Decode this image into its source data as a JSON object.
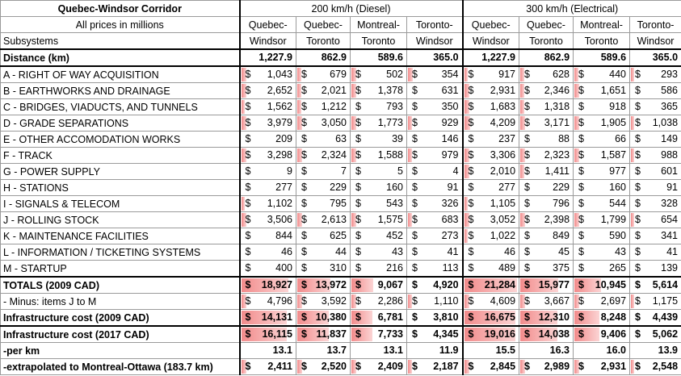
{
  "table": {
    "title": "Quebec-Windsor Corridor",
    "subtitle": "All prices in millions",
    "subsystems_label": "Subsystems",
    "group_diesel": "200 km/h (Diesel)",
    "group_electric": "300 km/h (Electrical)",
    "col_headers_top": [
      "Quebec-",
      "Quebec-",
      "Montreal-",
      "Toronto-",
      "Quebec-",
      "Quebec-",
      "Montreal-",
      "Toronto-"
    ],
    "col_headers_bottom": [
      "Windsor",
      "Toronto",
      "Toronto",
      "Windsor",
      "Windsor",
      "Toronto",
      "Toronto",
      "Windsor"
    ],
    "distance": {
      "label": "Distance (km)",
      "values": [
        "1,227.9",
        "862.9",
        "589.6",
        "365.0",
        "1,227.9",
        "862.9",
        "589.6",
        "365.0"
      ]
    },
    "currency_symbol": "$",
    "rows": [
      {
        "label": "A - RIGHT OF WAY ACQUISITION",
        "values": [
          "1,043",
          "679",
          "502",
          "354",
          "917",
          "628",
          "440",
          "293"
        ],
        "bars": [
          0.12,
          0.11,
          0.12,
          0.12,
          0.1,
          0.1,
          0.1,
          0.1
        ]
      },
      {
        "label": "B - EARTHWORKS AND DRAINAGE",
        "values": [
          "2,652",
          "2,021",
          "1,378",
          "631",
          "2,931",
          "2,346",
          "1,651",
          "586"
        ],
        "bars": [
          0.12,
          0.11,
          0.12,
          0.0,
          0.12,
          0.11,
          0.12,
          0.0
        ]
      },
      {
        "label": "C - BRIDGES, VIADUCTS, AND TUNNELS",
        "values": [
          "1,562",
          "1,212",
          "793",
          "350",
          "1,683",
          "1,318",
          "918",
          "365"
        ],
        "bars": [
          0.1,
          0.1,
          0.0,
          0.0,
          0.12,
          0.11,
          0.0,
          0.0
        ]
      },
      {
        "label": "D - GRADE SEPARATIONS",
        "values": [
          "3,979",
          "3,050",
          "1,773",
          "929",
          "4,209",
          "3,171",
          "1,905",
          "1,038"
        ],
        "bars": [
          0.12,
          0.12,
          0.12,
          0.1,
          0.14,
          0.12,
          0.12,
          0.1
        ]
      },
      {
        "label": "E - OTHER ACCOMODATION WORKS",
        "values": [
          "209",
          "63",
          "39",
          "146",
          "237",
          "88",
          "66",
          "149"
        ],
        "bars": [
          0,
          0,
          0,
          0,
          0,
          0,
          0,
          0
        ]
      },
      {
        "label": "F - TRACK",
        "values": [
          "3,298",
          "2,324",
          "1,588",
          "979",
          "3,306",
          "2,323",
          "1,587",
          "988"
        ],
        "bars": [
          0.12,
          0.12,
          0.12,
          0.1,
          0.12,
          0.12,
          0.12,
          0.1
        ]
      },
      {
        "label": "G - POWER SUPPLY",
        "values": [
          "9",
          "7",
          "5",
          "4",
          "2,010",
          "1,411",
          "977",
          "601"
        ],
        "bars": [
          0,
          0,
          0,
          0,
          0.12,
          0.11,
          0.0,
          0.0
        ]
      },
      {
        "label": "H - STATIONS",
        "values": [
          "277",
          "229",
          "160",
          "91",
          "277",
          "229",
          "160",
          "91"
        ],
        "bars": [
          0,
          0,
          0,
          0,
          0,
          0,
          0,
          0
        ]
      },
      {
        "label": "I - SIGNALS & TELECOM",
        "values": [
          "1,102",
          "795",
          "543",
          "326",
          "1,105",
          "796",
          "544",
          "328"
        ],
        "bars": [
          0.1,
          0,
          0,
          0,
          0.1,
          0,
          0,
          0
        ]
      },
      {
        "label": "J - ROLLING STOCK",
        "values": [
          "3,506",
          "2,613",
          "1,575",
          "683",
          "3,052",
          "2,398",
          "1,799",
          "654"
        ],
        "bars": [
          0.12,
          0.12,
          0.12,
          0.1,
          0.12,
          0.12,
          0.12,
          0.1
        ]
      },
      {
        "label": "K - MAINTENANCE FACILITIES",
        "values": [
          "844",
          "625",
          "452",
          "273",
          "1,022",
          "849",
          "590",
          "341"
        ],
        "bars": [
          0,
          0,
          0,
          0,
          0.1,
          0,
          0,
          0
        ]
      },
      {
        "label": "L - INFORMATION / TICKETING SYSTEMS",
        "values": [
          "46",
          "44",
          "43",
          "41",
          "46",
          "45",
          "43",
          "41"
        ],
        "bars": [
          0,
          0,
          0,
          0,
          0,
          0,
          0,
          0
        ]
      },
      {
        "label": "M - STARTUP",
        "values": [
          "400",
          "310",
          "216",
          "113",
          "489",
          "375",
          "265",
          "139"
        ],
        "bars": [
          0,
          0,
          0,
          0,
          0,
          0,
          0,
          0
        ]
      }
    ],
    "totals": {
      "label": "TOTALS (2009 CAD)",
      "values": [
        "18,927",
        "13,972",
        "9,067",
        "4,920",
        "21,284",
        "15,977",
        "10,945",
        "5,614"
      ],
      "bars": [
        0.88,
        0.65,
        0.42,
        0.0,
        0.98,
        0.74,
        0.5,
        0.0
      ]
    },
    "minus": {
      "label": "- Minus: items J to M",
      "values": [
        "4,796",
        "3,592",
        "2,286",
        "1,110",
        "4,609",
        "3,667",
        "2,697",
        "1,175"
      ],
      "bars": [
        0.12,
        0.12,
        0.12,
        0.1,
        0.12,
        0.12,
        0.12,
        0.1
      ]
    },
    "infra2009": {
      "label": "Infrastructure cost (2009 CAD)",
      "values": [
        "14,131",
        "10,380",
        "6,781",
        "3,810",
        "16,675",
        "12,310",
        "8,248",
        "4,439"
      ],
      "bars": [
        0.85,
        0.62,
        0.4,
        0.0,
        0.96,
        0.72,
        0.48,
        0.0
      ]
    },
    "infra2017": {
      "label": "Infrastructure cost (2017 CAD)",
      "values": [
        "16,115",
        "11,837",
        "7,733",
        "4,345",
        "19,016",
        "14,038",
        "9,406",
        "5,062"
      ],
      "bars": [
        0.85,
        0.62,
        0.4,
        0.0,
        0.96,
        0.72,
        0.48,
        0.0
      ]
    },
    "perkm": {
      "label": "-per km",
      "values": [
        "13.1",
        "13.7",
        "13.1",
        "11.9",
        "15.5",
        "16.3",
        "16.0",
        "13.9"
      ]
    },
    "extrap": {
      "label": "-extrapolated to Montreal-Ottawa (183.7 km)",
      "values": [
        "2,411",
        "2,520",
        "2,409",
        "2,187",
        "2,845",
        "2,989",
        "2,931",
        "2,548"
      ],
      "bars": [
        0.12,
        0.12,
        0.12,
        0.1,
        0.12,
        0.12,
        0.12,
        0.1
      ]
    }
  }
}
